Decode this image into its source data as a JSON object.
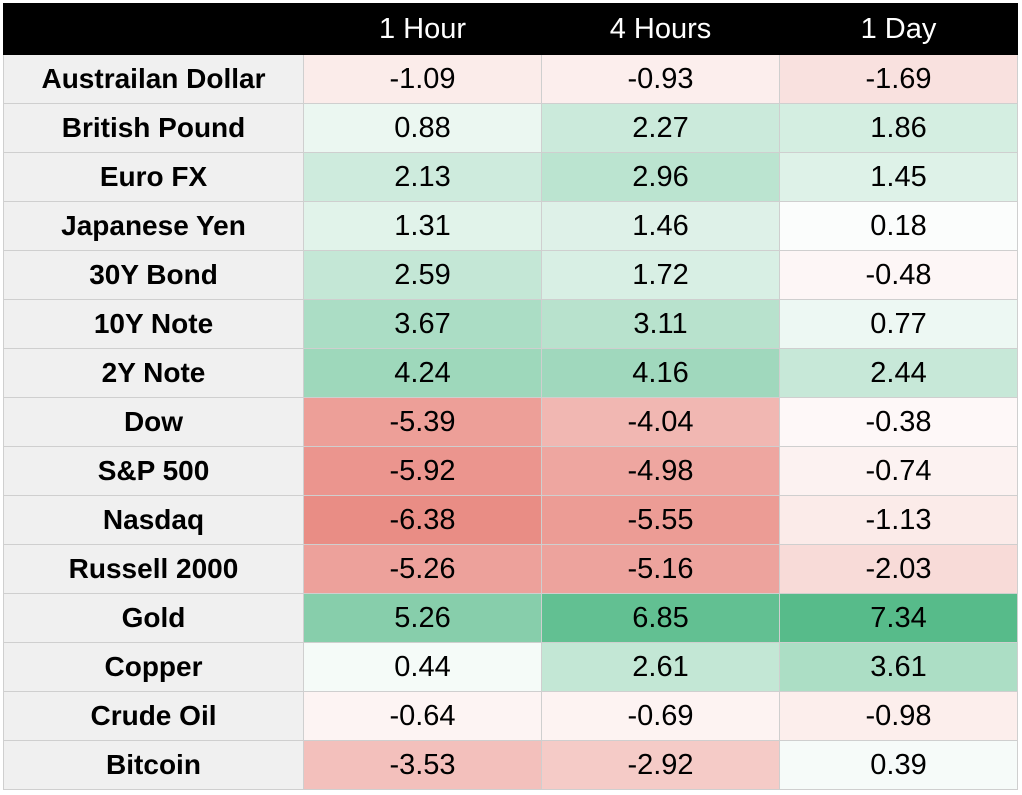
{
  "chart_data": {
    "type": "heatmap",
    "columns": [
      "1 Hour",
      "4 Hours",
      "1 Day"
    ],
    "rows": [
      {
        "label": "Austrailan Dollar",
        "values": [
          "-1.09",
          "-0.93",
          "-1.69"
        ]
      },
      {
        "label": "British Pound",
        "values": [
          "0.88",
          "2.27",
          "1.86"
        ]
      },
      {
        "label": "Euro FX",
        "values": [
          "2.13",
          "2.96",
          "1.45"
        ]
      },
      {
        "label": "Japanese Yen",
        "values": [
          "1.31",
          "1.46",
          "0.18"
        ]
      },
      {
        "label": "30Y Bond",
        "values": [
          "2.59",
          "1.72",
          "-0.48"
        ]
      },
      {
        "label": "10Y Note",
        "values": [
          "3.67",
          "3.11",
          "0.77"
        ]
      },
      {
        "label": "2Y Note",
        "values": [
          "4.24",
          "4.16",
          "2.44"
        ]
      },
      {
        "label": "Dow",
        "values": [
          "-5.39",
          "-4.04",
          "-0.38"
        ]
      },
      {
        "label": "S&P 500",
        "values": [
          "-5.92",
          "-4.98",
          "-0.74"
        ]
      },
      {
        "label": "Nasdaq",
        "values": [
          "-6.38",
          "-5.55",
          "-1.13"
        ]
      },
      {
        "label": "Russell 2000",
        "values": [
          "-5.26",
          "-5.16",
          "-2.03"
        ]
      },
      {
        "label": "Gold",
        "values": [
          "5.26",
          "6.85",
          "7.34"
        ]
      },
      {
        "label": "Copper",
        "values": [
          "0.44",
          "2.61",
          "3.61"
        ]
      },
      {
        "label": "Crude Oil",
        "values": [
          "-0.64",
          "-0.69",
          "-0.98"
        ]
      },
      {
        "label": "Bitcoin",
        "values": [
          "-3.53",
          "-2.92",
          "0.39"
        ]
      }
    ],
    "colors": {
      "negative": "#e67c73",
      "neutral": "#ffffff",
      "positive": "#57bb8a",
      "header_bg": "#000000",
      "header_text": "#ffffff",
      "label_bg": "#f0f0f0"
    }
  }
}
